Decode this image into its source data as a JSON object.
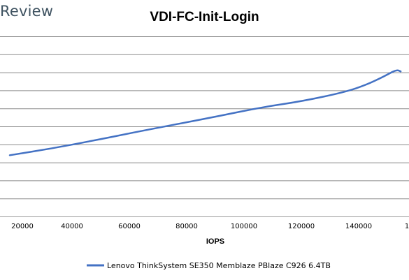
{
  "brand": "Review",
  "chart_data": {
    "type": "line",
    "title": "VDI-FC-Init-Login",
    "xlabel": "IOPS",
    "ylabel": "",
    "x_ticks": [
      "20000",
      "40000",
      "60000",
      "80000",
      "100000",
      "120000",
      "140000",
      "1"
    ],
    "xlim": [
      15000,
      156000
    ],
    "grid": "horizontal",
    "legend_position": "bottom",
    "series": [
      {
        "name": "Lenovo ThinkSystem SE350 Memblaze PBlaze C926 6.4TB",
        "color": "#4472c4",
        "points": [
          {
            "x": 15500,
            "y": 0.34
          },
          {
            "x": 30000,
            "y": 0.376
          },
          {
            "x": 45000,
            "y": 0.42
          },
          {
            "x": 60000,
            "y": 0.467
          },
          {
            "x": 75000,
            "y": 0.512
          },
          {
            "x": 90000,
            "y": 0.557
          },
          {
            "x": 105000,
            "y": 0.605
          },
          {
            "x": 120000,
            "y": 0.64
          },
          {
            "x": 135000,
            "y": 0.69
          },
          {
            "x": 143000,
            "y": 0.732
          },
          {
            "x": 149000,
            "y": 0.777
          },
          {
            "x": 153500,
            "y": 0.815
          },
          {
            "x": 155000,
            "y": 0.805
          }
        ]
      }
    ]
  }
}
